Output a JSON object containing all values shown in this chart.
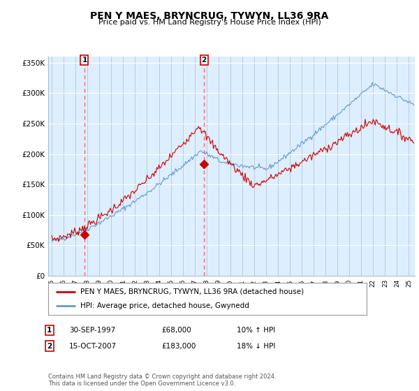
{
  "title": "PEN Y MAES, BRYNCRUG, TYWYN, LL36 9RA",
  "subtitle": "Price paid vs. HM Land Registry's House Price Index (HPI)",
  "ylabel_ticks": [
    "£0",
    "£50K",
    "£100K",
    "£150K",
    "£200K",
    "£250K",
    "£300K",
    "£350K"
  ],
  "ytick_values": [
    0,
    50000,
    100000,
    150000,
    200000,
    250000,
    300000,
    350000
  ],
  "ylim": [
    0,
    360000
  ],
  "xlim_start": 1994.7,
  "xlim_end": 2025.5,
  "hpi_color": "#6699cc",
  "price_color": "#cc0000",
  "vline_color": "#ff6666",
  "marker_color": "#cc0000",
  "sale1_year": 1997.75,
  "sale1_price": 68000,
  "sale2_year": 2007.79,
  "sale2_price": 183000,
  "legend_label_red": "PEN Y MAES, BRYNCRUG, TYWYN, LL36 9RA (detached house)",
  "legend_label_blue": "HPI: Average price, detached house, Gwynedd",
  "note1_date": "30-SEP-1997",
  "note1_price": "£68,000",
  "note1_hpi": "10% ↑ HPI",
  "note2_date": "15-OCT-2007",
  "note2_price": "£183,000",
  "note2_hpi": "18% ↓ HPI",
  "footer": "Contains HM Land Registry data © Crown copyright and database right 2024.\nThis data is licensed under the Open Government Licence v3.0.",
  "bg_color": "#ffffff",
  "plot_bg_color": "#ddeeff",
  "grid_color": "#aabbcc"
}
